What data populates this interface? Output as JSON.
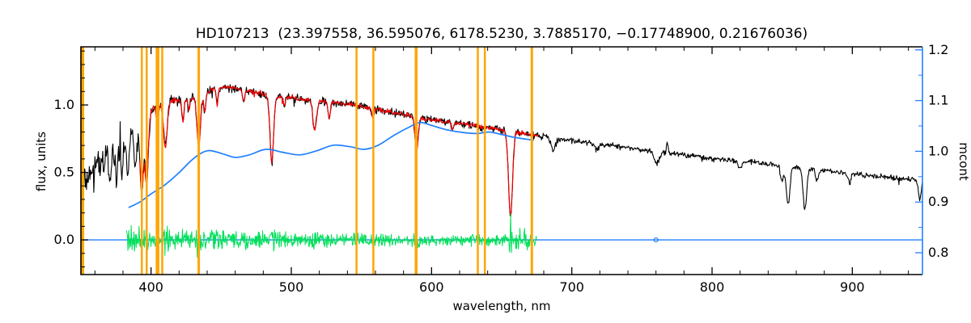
{
  "chart_data": {
    "type": "line",
    "title": "HD107213  (23.397558, 36.595076, 6178.5230, 3.7885170, −0.17748900, 0.21676036)",
    "xlabel": "wavelength, nm",
    "ylabel": "flux, units",
    "y2label": "mcont",
    "xlim": [
      350,
      950
    ],
    "ylim": [
      -0.257,
      1.431
    ],
    "y2lim": [
      0.757,
      1.206
    ],
    "xticks": [
      400,
      500,
      600,
      700,
      800,
      900
    ],
    "xtick_labels": [
      "400",
      "500",
      "600",
      "700",
      "800",
      "900"
    ],
    "xtick_minor_step": 20,
    "yticks": [
      0.0,
      0.5,
      1.0
    ],
    "ytick_labels": [
      "0.0",
      "0.5",
      "1.0"
    ],
    "ytick_minor_step": 0.1,
    "y2ticks": [
      0.8,
      0.9,
      1.0,
      1.1,
      1.2
    ],
    "y2tick_labels": [
      "0.8",
      "0.9",
      "1.0",
      "1.1",
      "1.2"
    ],
    "y2tick_minor_step": 0.05,
    "grid": false,
    "legend": "none",
    "colors": {
      "spectrum": "#000000",
      "fit": "#ee0000",
      "mcont": "#2080ff",
      "residual": "#00e05a",
      "marker": "#ffa500",
      "frame": "#000000"
    },
    "series": [
      {
        "name": "observed spectrum",
        "color_key": "spectrum",
        "axis": "left",
        "range_nm": [
          350,
          950
        ]
      },
      {
        "name": "fitted model spectrum",
        "color_key": "fit",
        "axis": "left",
        "range_nm": [
          392,
          676
        ]
      },
      {
        "name": "continuum ratio mcont",
        "color_key": "mcont",
        "axis": "right",
        "range_nm": [
          384,
          673
        ]
      },
      {
        "name": "fit residuals",
        "color_key": "residual",
        "axis": "left",
        "range_nm": [
          382.5,
          675
        ]
      },
      {
        "name": "zero level line",
        "color_key": "mcont",
        "axis": "left",
        "y_flux": 0.0,
        "range_nm": [
          350,
          950
        ]
      }
    ],
    "spectrum_envelope": {
      "x": [
        350,
        358,
        366,
        374,
        382,
        390,
        398,
        406,
        414,
        422,
        430,
        438,
        446,
        454,
        462,
        470,
        480,
        490,
        500,
        510,
        520,
        530,
        540,
        550,
        560,
        570,
        580,
        590,
        600,
        615,
        630,
        645,
        660,
        675,
        690,
        705,
        720,
        740,
        760,
        780,
        800,
        820,
        840,
        860,
        880,
        900,
        920,
        950
      ],
      "flux": [
        0.42,
        0.5,
        0.58,
        0.66,
        0.76,
        0.86,
        0.95,
        1.0,
        1.03,
        1.04,
        1.06,
        1.09,
        1.12,
        1.13,
        1.12,
        1.1,
        1.08,
        1.06,
        1.06,
        1.04,
        1.03,
        1.02,
        1.01,
        0.99,
        0.97,
        0.95,
        0.93,
        0.91,
        0.89,
        0.87,
        0.85,
        0.82,
        0.8,
        0.77,
        0.75,
        0.73,
        0.71,
        0.68,
        0.655,
        0.63,
        0.6,
        0.585,
        0.565,
        0.535,
        0.515,
        0.49,
        0.47,
        0.44
      ]
    },
    "absorption_lines": [
      [
        371.0,
        0.18,
        1.2
      ],
      [
        375.0,
        0.2,
        1.2
      ],
      [
        379.0,
        0.22,
        1.3
      ],
      [
        383.5,
        0.28,
        1.5
      ],
      [
        388.9,
        0.32,
        1.5
      ],
      [
        393.4,
        0.55,
        1.7
      ],
      [
        396.9,
        0.5,
        1.7
      ],
      [
        404.6,
        0.15,
        1.0
      ],
      [
        410.2,
        0.32,
        1.8
      ],
      [
        422.7,
        0.16,
        1.1
      ],
      [
        427.0,
        0.1,
        1.0
      ],
      [
        434.0,
        0.38,
        1.8
      ],
      [
        438.3,
        0.14,
        1.1
      ],
      [
        447.1,
        0.12,
        1.0
      ],
      [
        466.0,
        0.09,
        1.0
      ],
      [
        486.1,
        0.5,
        1.8
      ],
      [
        495.0,
        0.07,
        1.0
      ],
      [
        516.7,
        0.22,
        1.8
      ],
      [
        527.0,
        0.12,
        1.2
      ],
      [
        558.0,
        0.07,
        1.0
      ],
      [
        589.3,
        0.25,
        1.6
      ],
      [
        615.0,
        0.06,
        1.0
      ],
      [
        656.3,
        0.63,
        2.0
      ],
      [
        686.9,
        0.09,
        2.2
      ],
      [
        718.0,
        0.05,
        2.0
      ],
      [
        760.5,
        0.09,
        2.5
      ],
      [
        768.0,
        -0.07,
        0.8
      ],
      [
        820.0,
        0.06,
        1.8
      ],
      [
        849.8,
        0.12,
        1.5
      ],
      [
        854.2,
        0.28,
        1.8
      ],
      [
        866.2,
        0.3,
        1.8
      ],
      [
        875.0,
        0.08,
        1.5
      ],
      [
        898.0,
        0.07,
        1.5
      ],
      [
        948.0,
        0.14,
        1.5
      ]
    ],
    "noise_profile": [
      [
        382,
        0.13
      ],
      [
        400,
        0.075
      ],
      [
        430,
        0.05
      ],
      [
        680,
        0.036
      ],
      [
        770,
        0.026
      ],
      [
        950,
        0.024
      ]
    ],
    "fit": {
      "range": [
        392,
        676
      ],
      "noise_scale": 0.55
    },
    "residual": {
      "range": [
        382.5,
        675
      ],
      "step": 0.33,
      "base_amp": 0.052,
      "hotspots": [
        [
          386,
          6,
          0.05
        ],
        [
          452,
          58,
          0.03
        ],
        [
          665,
          10,
          0.045
        ]
      ],
      "line_spike_scale": 0.22
    },
    "mcont_curve": {
      "x": [
        384,
        392,
        400,
        410,
        420,
        430,
        440,
        450,
        460,
        470,
        482,
        494,
        506,
        518,
        530,
        542,
        552,
        562,
        574,
        585,
        592,
        600,
        610,
        620,
        632,
        641,
        650,
        660,
        673
      ],
      "m": [
        0.889,
        0.9,
        0.916,
        0.934,
        0.958,
        0.985,
        1.001,
        0.996,
        0.988,
        0.993,
        1.004,
        0.998,
        0.993,
        1.001,
        1.012,
        1.009,
        1.004,
        1.012,
        1.033,
        1.049,
        1.057,
        1.051,
        1.043,
        1.038,
        1.035,
        1.038,
        1.033,
        1.027,
        1.022
      ]
    },
    "zero_line": {
      "y_flux": 0.0,
      "range": [
        350,
        950
      ],
      "glitch_nm": 760
    },
    "line_markers": {
      "color_key": "marker",
      "lines": [
        [
          351.3,
          3.5
        ],
        [
          393.4,
          2.5
        ],
        [
          396.9,
          2.5
        ],
        [
          404.6,
          4.5
        ],
        [
          408.0,
          2.5
        ],
        [
          434.0,
          3.0
        ],
        [
          546.5,
          2.5
        ],
        [
          558.5,
          2.5
        ],
        [
          589.0,
          3.5
        ],
        [
          633.0,
          2.5
        ],
        [
          638.0,
          2.5
        ],
        [
          671.5,
          3.0
        ]
      ]
    }
  }
}
